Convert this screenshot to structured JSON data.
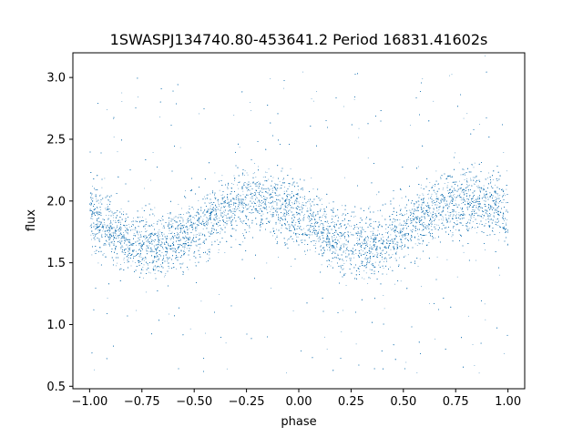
{
  "chart_data": {
    "type": "scatter",
    "title": "1SWASPJ134740.80-453641.2 Period 16831.41602s",
    "xlabel": "phase",
    "ylabel": "flux",
    "xlim": [
      -1.08,
      1.08
    ],
    "ylim": [
      0.48,
      3.2
    ],
    "xticks": [
      -1.0,
      -0.75,
      -0.5,
      -0.25,
      0.0,
      0.25,
      0.5,
      0.75,
      1.0
    ],
    "xtick_labels": [
      "−1.00",
      "−0.75",
      "−0.50",
      "−0.25",
      "0.00",
      "0.25",
      "0.50",
      "0.75",
      "1.00"
    ],
    "yticks": [
      0.5,
      1.0,
      1.5,
      2.0,
      2.5,
      3.0
    ],
    "ytick_labels": [
      "0.5",
      "1.0",
      "1.5",
      "2.0",
      "2.5",
      "3.0"
    ],
    "grid": false,
    "legend": "none",
    "marker_color": "#1f77b4",
    "point_count": 20000,
    "model": {
      "description": "phase-folded light curve, double sinusoid",
      "x_range": [
        -1.0,
        1.0
      ],
      "mean_flux": 1.82,
      "amplitude": 0.18,
      "maxima_phase": [
        -0.2,
        0.8
      ],
      "minima_phase": [
        -0.7,
        0.3
      ],
      "scatter_sigma": 0.13,
      "outlier_fraction": 0.06,
      "outlier_range": [
        0.6,
        3.05
      ]
    },
    "series": [
      {
        "name": "",
        "sample_points": [
          [
            -1.0,
            1.93
          ],
          [
            -0.9,
            1.82
          ],
          [
            -0.8,
            1.7
          ],
          [
            -0.7,
            1.64
          ],
          [
            -0.6,
            1.7
          ],
          [
            -0.5,
            1.82
          ],
          [
            -0.4,
            1.93
          ],
          [
            -0.3,
            1.99
          ],
          [
            -0.2,
            2.0
          ],
          [
            -0.1,
            1.99
          ],
          [
            0.0,
            1.93
          ],
          [
            0.1,
            1.82
          ],
          [
            0.2,
            1.7
          ],
          [
            0.3,
            1.64
          ],
          [
            0.4,
            1.7
          ],
          [
            0.5,
            1.82
          ],
          [
            0.6,
            1.93
          ],
          [
            0.7,
            1.99
          ],
          [
            0.8,
            2.0
          ],
          [
            0.9,
            1.99
          ],
          [
            1.0,
            1.93
          ]
        ]
      }
    ]
  }
}
